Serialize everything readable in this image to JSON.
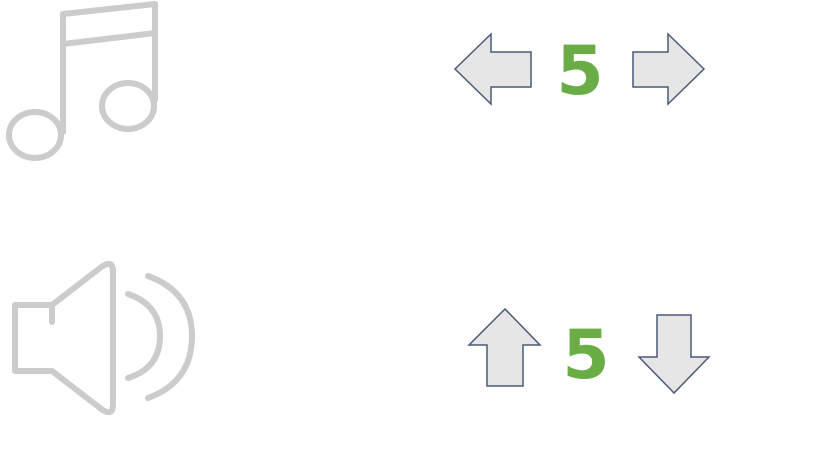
{
  "music": {
    "icon": "music-note-icon",
    "value": "5",
    "decrease_icon": "arrow-left-icon",
    "increase_icon": "arrow-right-icon"
  },
  "volume": {
    "icon": "speaker-volume-icon",
    "value": "5",
    "increase_icon": "arrow-up-icon",
    "decrease_icon": "arrow-down-icon"
  },
  "colors": {
    "icon_gray": "#cccccc",
    "value_green": "#6aac46",
    "arrow_fill": "#e6e6e6",
    "arrow_stroke": "#4a5a78"
  }
}
